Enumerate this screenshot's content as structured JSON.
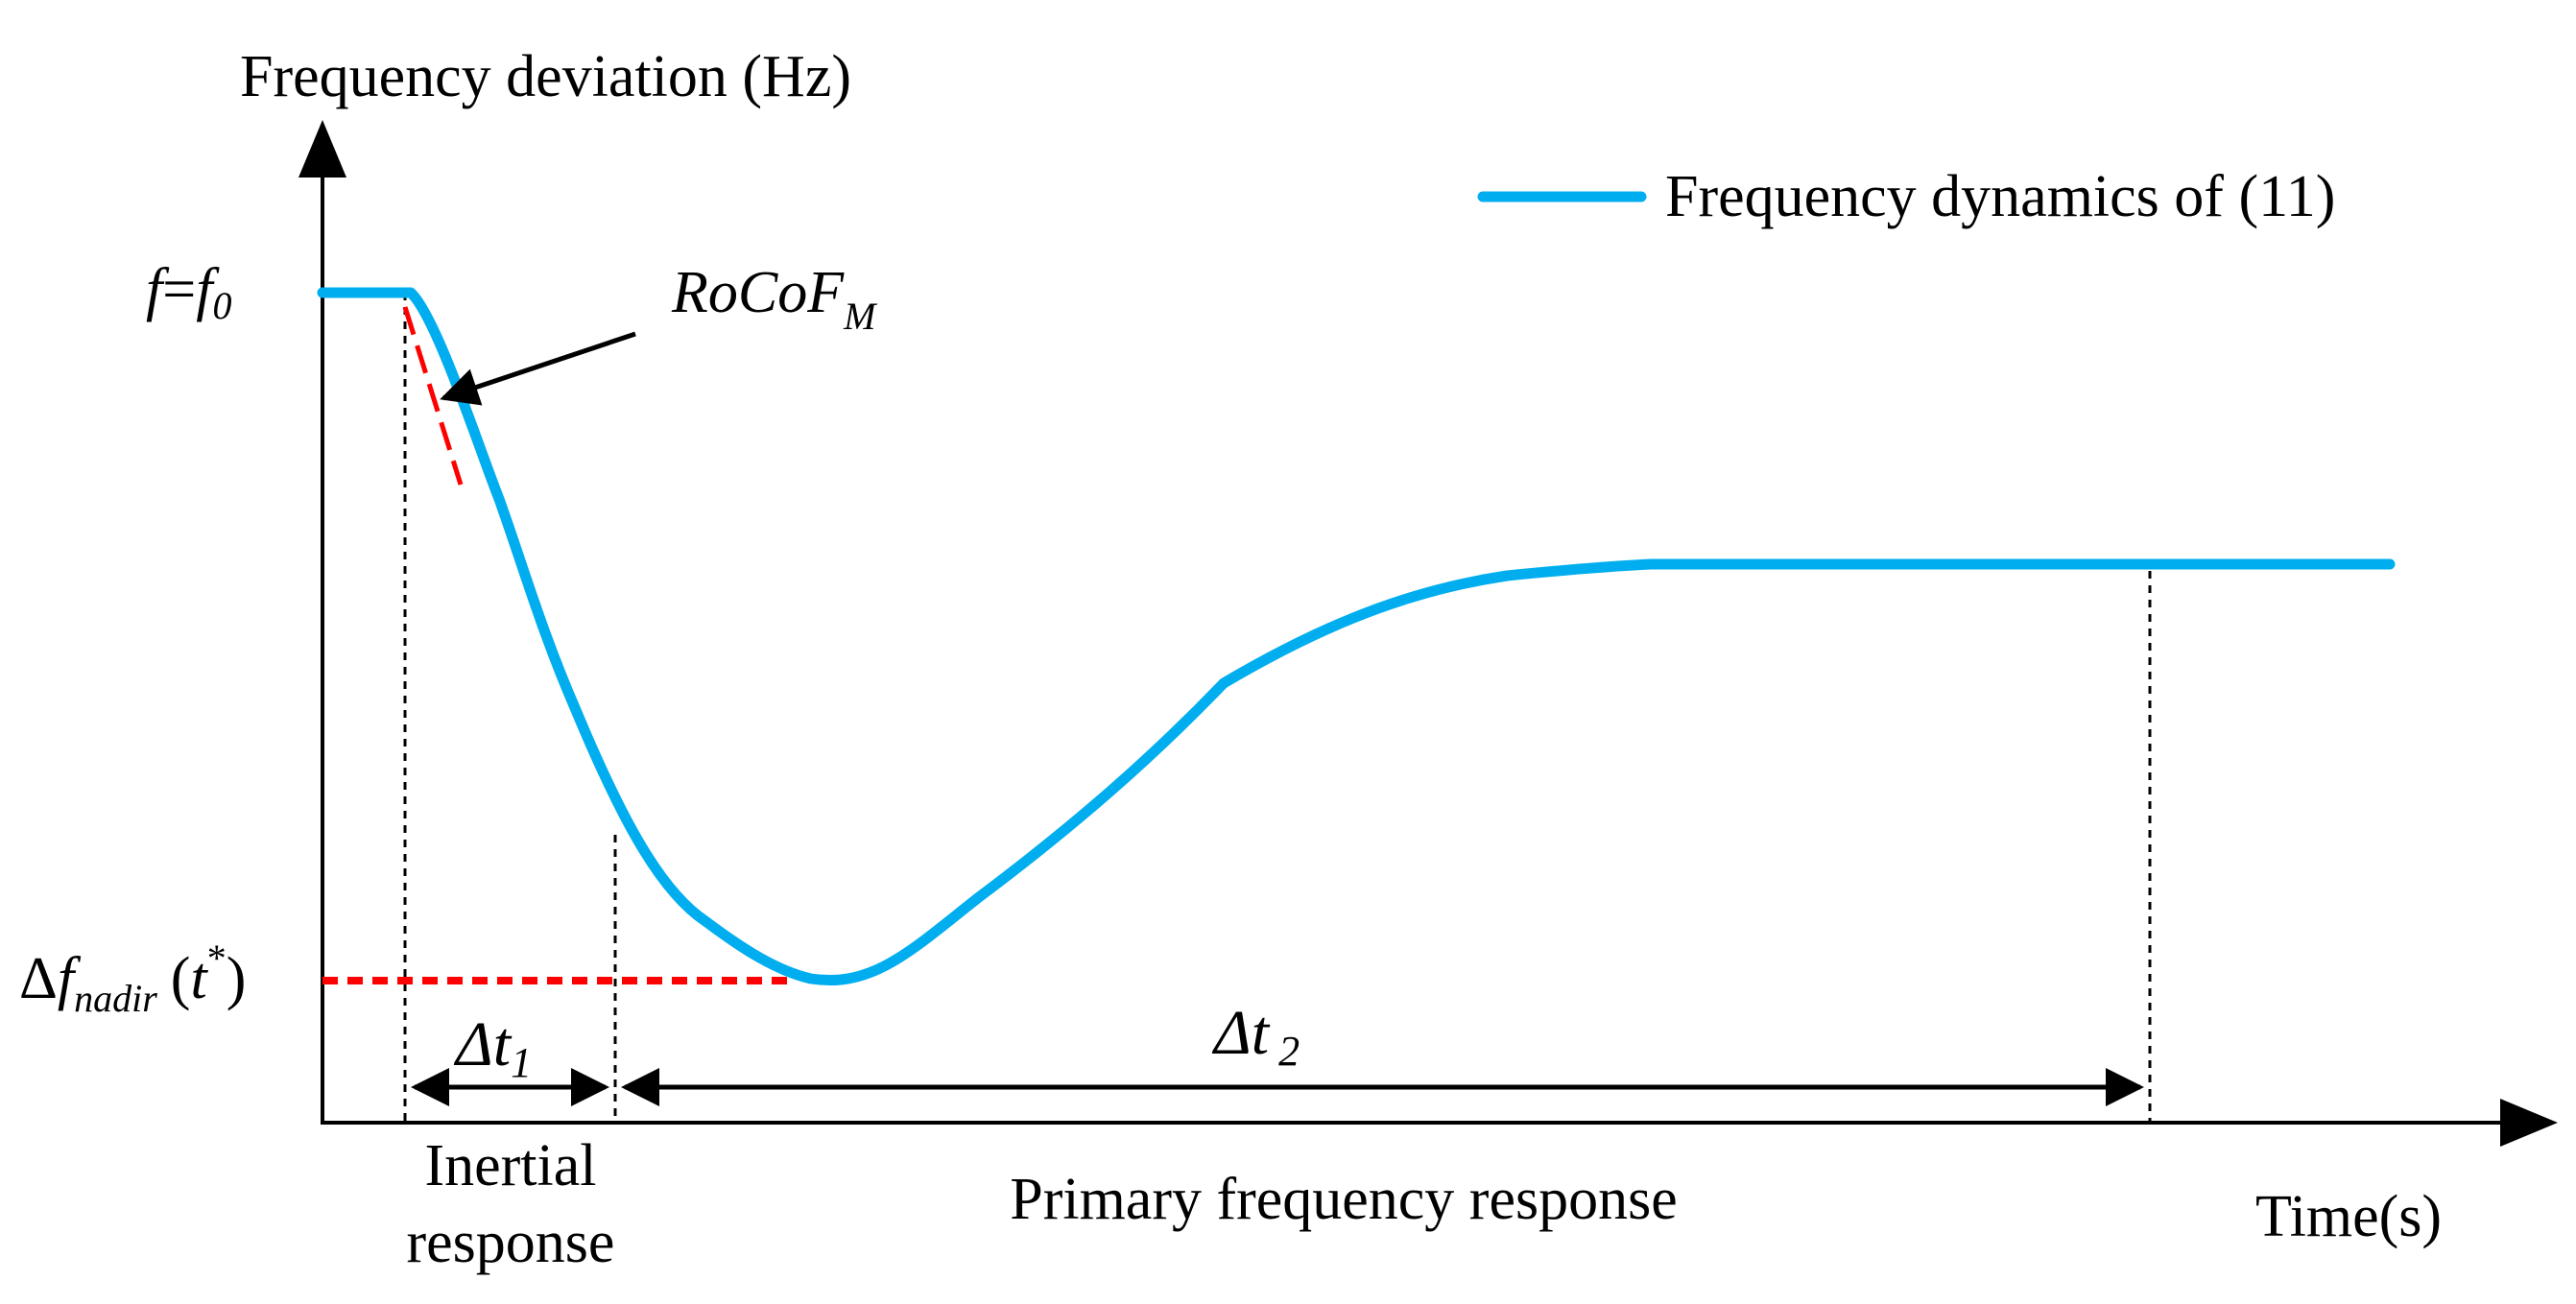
{
  "title": "Frequency deviation (Hz)",
  "x_axis_label": "Time(s)",
  "legend": {
    "label": "Frequency dynamics of (11)",
    "color": "#00AEEF"
  },
  "y_markers": {
    "f0": {
      "f1": "f",
      "eq": "=",
      "f2": "f",
      "sub": "0"
    },
    "nadir": {
      "delta": "Δ",
      "f": "f",
      "sub": "nadir",
      "open": "(",
      "t": "t",
      "sup": "*",
      "close": ")"
    }
  },
  "annotations": {
    "rocof": {
      "main": "RoCoF",
      "sub": "M"
    },
    "dt1": {
      "delta": "Δ",
      "t": "t",
      "sub": "1"
    },
    "dt2": {
      "delta": "Δ",
      "t": "t",
      "sub": "2"
    },
    "inertial": {
      "line1": "Inertial",
      "line2": "response"
    },
    "primary": "Primary frequency response"
  },
  "colors": {
    "curve": "#00AEEF",
    "dashed_red": "#FF0000",
    "axis": "#000000"
  }
}
